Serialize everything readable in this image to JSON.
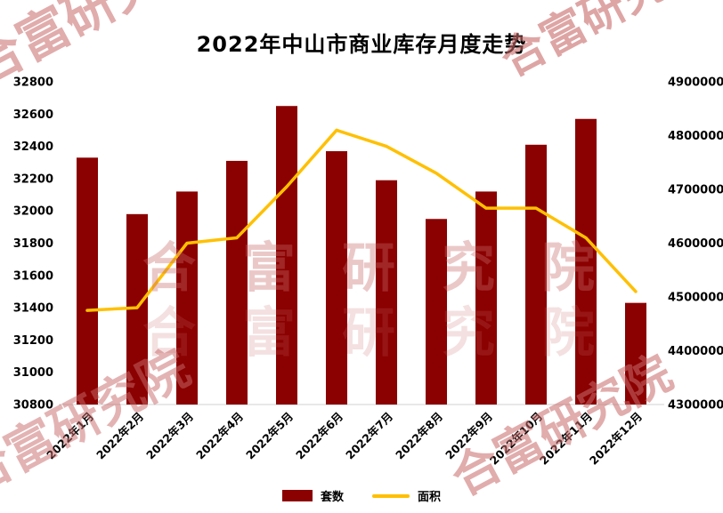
{
  "title": "2022年中山市商业库存月度走势",
  "watermark": "合富研究院",
  "legend": {
    "bar_label": "套数",
    "line_label": "面积"
  },
  "colors": {
    "bar": "#8B0000",
    "line": "#FFC000",
    "watermark": "#C96A6A",
    "axis_line": "#D0D0D0",
    "text": "#000000"
  },
  "chart_data": {
    "type": "combo",
    "title": "2022年中山市商业库存月度走势",
    "categories": [
      "2022年1月",
      "2022年2月",
      "2022年3月",
      "2022年4月",
      "2022年5月",
      "2022年6月",
      "2022年7月",
      "2022年8月",
      "2022年9月",
      "2022年10月",
      "2022年11月",
      "2022年12月"
    ],
    "series": [
      {
        "name": "套数",
        "type": "bar",
        "axis": "left",
        "color": "#8B0000",
        "values": [
          32330,
          31980,
          32120,
          32310,
          32650,
          32370,
          32190,
          31950,
          32120,
          32410,
          32570,
          31430
        ]
      },
      {
        "name": "面积",
        "type": "line",
        "axis": "right",
        "color": "#FFC000",
        "values": [
          4475000,
          4480000,
          4600000,
          4610000,
          4705000,
          4810000,
          4780000,
          4730000,
          4665000,
          4665000,
          4610000,
          4510000
        ]
      }
    ],
    "left_axis": {
      "min": 30800,
      "max": 32800,
      "tick_step": 200
    },
    "right_axis": {
      "min": 4300000,
      "max": 4900000,
      "tick_step": 100000
    },
    "grid": false,
    "legend_position": "bottom"
  }
}
